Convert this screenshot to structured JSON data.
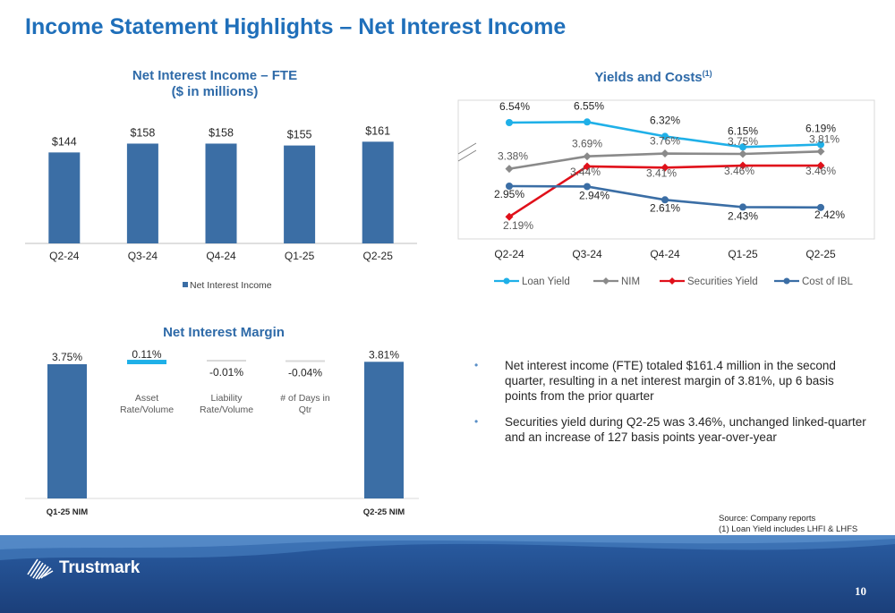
{
  "page": {
    "title": "Income Statement Highlights – Net Interest Income",
    "page_number": "10"
  },
  "colors": {
    "brand_blue": "#1f6fba",
    "bar_blue": "#3b6ea5",
    "loan_yield": "#1fb0e8",
    "nim": "#8a8a8a",
    "securities_yield": "#e0101a",
    "cost_ibl": "#3b6ea5"
  },
  "chart_data": [
    {
      "type": "bar",
      "title": "Net Interest Income – FTE",
      "subtitle": "($ in millions)",
      "categories": [
        "Q2-24",
        "Q3-24",
        "Q4-24",
        "Q1-25",
        "Q2-25"
      ],
      "values": [
        144,
        158,
        158,
        155,
        161
      ],
      "data_labels": [
        "$144",
        "$158",
        "$158",
        "$155",
        "$161"
      ],
      "legend": [
        "Net Interest Income"
      ],
      "legend_position": "bottom",
      "ylim": [
        0,
        170
      ]
    },
    {
      "type": "line",
      "title": "Yields and Costs",
      "title_footnote": "(1)",
      "categories": [
        "Q2-24",
        "Q3-24",
        "Q4-24",
        "Q1-25",
        "Q2-25"
      ],
      "legend_position": "bottom",
      "axis_break": true,
      "series": [
        {
          "name": "Loan Yield",
          "values": [
            6.54,
            6.55,
            6.32,
            6.15,
            6.19
          ],
          "labels": [
            "6.54%",
            "6.55%",
            "6.32%",
            "6.15%",
            "6.19%"
          ]
        },
        {
          "name": "NIM",
          "values": [
            3.38,
            3.69,
            3.76,
            3.75,
            3.81
          ],
          "labels": [
            "3.38%",
            "3.69%",
            "3.76%",
            "3.75%",
            "3.81%"
          ]
        },
        {
          "name": "Securities Yield",
          "values": [
            2.19,
            3.44,
            3.41,
            3.46,
            3.46
          ],
          "labels": [
            "2.19%",
            "3.44%",
            "3.41%",
            "3.46%",
            "3.46%"
          ]
        },
        {
          "name": "Cost of IBL",
          "values": [
            2.95,
            2.94,
            2.61,
            2.43,
            2.42
          ],
          "labels": [
            "2.95%",
            "2.94%",
            "2.61%",
            "2.43%",
            "2.42%"
          ]
        }
      ]
    },
    {
      "type": "bar",
      "subtype": "waterfall",
      "title": "Net Interest Margin",
      "bars": [
        {
          "category": "Q1-25 NIM",
          "value": 3.75,
          "label": "3.75%",
          "kind": "total"
        },
        {
          "category": "Asset Rate/Volume",
          "value": 0.11,
          "label": "0.11%",
          "kind": "delta"
        },
        {
          "category": "Liability Rate/Volume",
          "value": -0.01,
          "label": "-0.01%",
          "kind": "delta"
        },
        {
          "category": "# of Days in Qtr",
          "value": -0.04,
          "label": "-0.04%",
          "kind": "delta"
        },
        {
          "category": "Q2-25 NIM",
          "value": 3.81,
          "label": "3.81%",
          "kind": "total"
        }
      ],
      "axis_labels": [
        "Q1-25 NIM",
        "",
        "",
        "",
        "Q2-25 NIM"
      ],
      "mid_labels": [
        [
          "Asset",
          "Rate/Volume"
        ],
        [
          "Liability",
          "Rate/Volume"
        ],
        [
          "# of Days in",
          "Qtr"
        ]
      ]
    }
  ],
  "bullets": [
    "Net interest income (FTE) totaled $161.4 million in the second quarter, resulting in a net interest margin of 3.81%, up 6 basis points from the prior quarter",
    "Securities yield during Q2-25 was 3.46%, unchanged linked-quarter and an increase of 127 basis points year-over-year"
  ],
  "source": {
    "line1": "Source: Company reports",
    "line2": "(1) Loan Yield  includes LHFI & LHFS"
  },
  "footer": {
    "logo_text": "Trustmark",
    "logo_icon": "trustmark-stripes-icon"
  }
}
